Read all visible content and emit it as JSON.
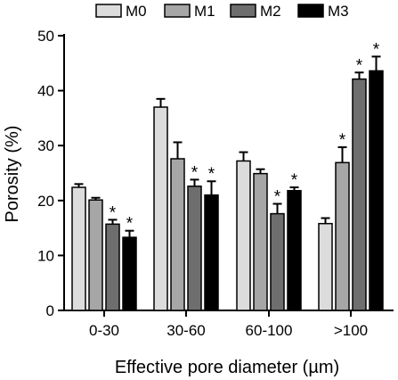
{
  "chart_data": {
    "type": "bar",
    "categories": [
      "0-30",
      "30-60",
      "60-100",
      ">100"
    ],
    "series": [
      {
        "name": "M0",
        "color": "#dcdcdc",
        "values": [
          22.4,
          37.0,
          27.2,
          15.8
        ],
        "errors": [
          0.6,
          1.5,
          1.6,
          1.0
        ]
      },
      {
        "name": "M1",
        "color": "#a6a6a6",
        "values": [
          20.1,
          27.6,
          24.9,
          26.9
        ],
        "errors": [
          0.4,
          3.0,
          0.8,
          2.8
        ]
      },
      {
        "name": "M2",
        "color": "#6e6e6e",
        "values": [
          15.7,
          22.6,
          17.6,
          42.1
        ],
        "errors": [
          0.8,
          1.2,
          1.8,
          1.2
        ]
      },
      {
        "name": "M3",
        "color": "#000000",
        "values": [
          13.3,
          21.0,
          21.8,
          43.6
        ],
        "errors": [
          1.2,
          2.5,
          0.6,
          2.6
        ]
      }
    ],
    "significance": [
      [
        "",
        "",
        "",
        ""
      ],
      [
        "",
        "",
        "",
        "*"
      ],
      [
        "*",
        "*",
        "*",
        "*"
      ],
      [
        "*",
        "*",
        "*",
        "*"
      ]
    ],
    "xlabel": "Effective pore diameter (µm)",
    "ylabel": "Porosity (%)",
    "ylim": [
      0,
      50
    ],
    "yticks": [
      0,
      10,
      20,
      30,
      40,
      50
    ],
    "legend": "top",
    "grid": false
  }
}
